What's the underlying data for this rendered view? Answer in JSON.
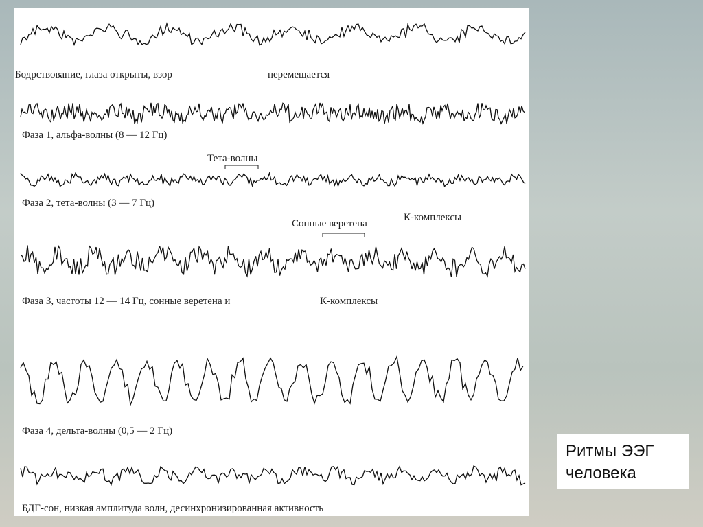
{
  "figure": {
    "labels": {
      "wake": "Бодрствование, глаза открыты, взор",
      "wake_2": "перемещается",
      "stage1": "Фаза 1, альфа-волны (8 — 12 Гц)",
      "theta_marker": "Тета-волны",
      "stage2": "Фаза 2, тета-волны (3 — 7 Гц)",
      "spindles_marker": "Сонные веретена",
      "kcomplex_marker": "К-комплексы",
      "stage3": "Фаза 3, частоты 12 — 14 Гц, сонные веретена и",
      "stage3_2": "К-комплексы",
      "stage4": "Фаза 4, дельта-волны  (0,5 — 2 Гц)",
      "rem": "БДГ-сон, низкая амплитуда волн, десинхронизированная активность"
    }
  },
  "caption": {
    "line1": "Ритмы ЭЭГ",
    "line2": "человека"
  }
}
